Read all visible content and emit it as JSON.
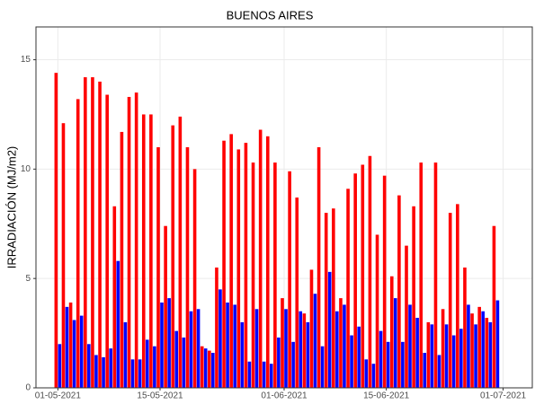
{
  "chart_data": {
    "type": "bar",
    "title": "BUENOS AIRES",
    "y_label": "IRRADIACIÓN (MJ/m2)",
    "x": [
      "01-05-2021",
      "02-05-2021",
      "03-05-2021",
      "04-05-2021",
      "05-05-2021",
      "06-05-2021",
      "07-05-2021",
      "08-05-2021",
      "09-05-2021",
      "10-05-2021",
      "11-05-2021",
      "12-05-2021",
      "13-05-2021",
      "14-05-2021",
      "15-05-2021",
      "16-05-2021",
      "17-05-2021",
      "18-05-2021",
      "19-05-2021",
      "20-05-2021",
      "21-05-2021",
      "22-05-2021",
      "23-05-2021",
      "24-05-2021",
      "25-05-2021",
      "26-05-2021",
      "27-05-2021",
      "28-05-2021",
      "29-05-2021",
      "30-05-2021",
      "31-05-2021",
      "01-06-2021",
      "02-06-2021",
      "03-06-2021",
      "04-06-2021",
      "05-06-2021",
      "06-06-2021",
      "07-06-2021",
      "08-06-2021",
      "09-06-2021",
      "10-06-2021",
      "11-06-2021",
      "12-06-2021",
      "13-06-2021",
      "14-06-2021",
      "15-06-2021",
      "16-06-2021",
      "17-06-2021",
      "18-06-2021",
      "19-06-2021",
      "20-06-2021",
      "21-06-2021",
      "22-06-2021",
      "23-06-2021",
      "24-06-2021",
      "25-06-2021",
      "26-06-2021",
      "27-06-2021",
      "28-06-2021",
      "29-06-2021",
      "30-06-2021"
    ],
    "series": [
      {
        "color": "#ff0000",
        "values": [
          14.4,
          12.1,
          3.9,
          13.2,
          14.2,
          14.2,
          14.0,
          13.4,
          8.3,
          11.7,
          13.3,
          13.5,
          12.5,
          12.5,
          11.0,
          7.4,
          12.0,
          12.4,
          11.0,
          10.0,
          1.9,
          1.7,
          5.5,
          11.3,
          11.6,
          10.9,
          11.2,
          10.3,
          11.8,
          11.5,
          10.3,
          4.1,
          9.9,
          8.7,
          3.4,
          5.4,
          11.0,
          8.0,
          8.2,
          4.1,
          9.1,
          9.8,
          10.2,
          10.6,
          7.0,
          9.7,
          5.1,
          8.8,
          6.5,
          8.3,
          10.3,
          3.0,
          10.3,
          3.6,
          8.0,
          8.4,
          5.5,
          3.4,
          3.7,
          3.2,
          7.4
        ]
      },
      {
        "color": "#0000ff",
        "values": [
          2.0,
          3.7,
          3.1,
          3.3,
          2.0,
          1.5,
          1.4,
          1.8,
          5.8,
          3.0,
          1.3,
          1.3,
          2.2,
          1.9,
          3.9,
          4.1,
          2.6,
          2.3,
          3.5,
          3.6,
          1.8,
          1.6,
          4.5,
          3.9,
          3.8,
          3.0,
          1.2,
          3.6,
          1.2,
          1.1,
          2.3,
          3.6,
          2.1,
          3.5,
          3.0,
          4.3,
          1.9,
          5.3,
          3.5,
          3.8,
          2.4,
          2.8,
          1.3,
          1.1,
          2.6,
          2.1,
          4.1,
          2.1,
          3.8,
          3.2,
          1.6,
          2.9,
          1.5,
          2.9,
          2.4,
          2.7,
          3.8,
          2.9,
          3.5,
          3.0,
          4.0
        ]
      }
    ],
    "xlim": [
      "28-04-2021",
      "05-07-2021"
    ],
    "xticks": [
      "01-05-2021",
      "15-05-2021",
      "01-06-2021",
      "15-06-2021",
      "01-07-2021"
    ],
    "ylim": [
      0,
      16.5
    ],
    "yticks": [
      0,
      5,
      10,
      15
    ],
    "grid": true
  }
}
